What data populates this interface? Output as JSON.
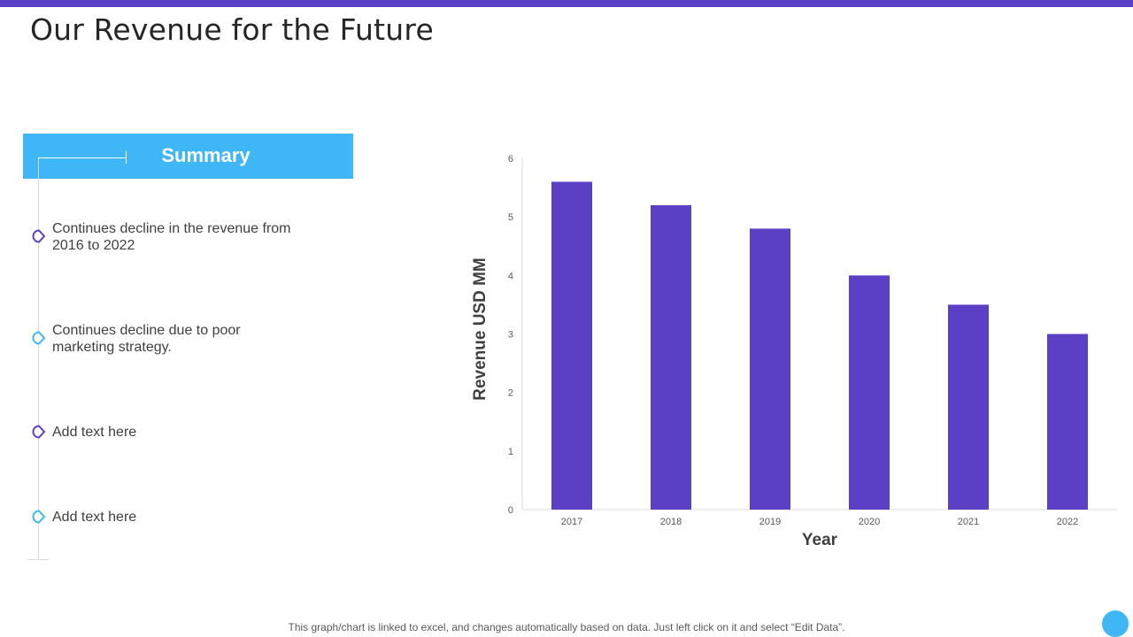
{
  "colors": {
    "accent": "#5b3fc4",
    "light_blue": "#3fb6f5",
    "bar": "#5b3fc4"
  },
  "page": {
    "title": "Our Revenue for the Future",
    "footer_note": "This graph/chart is linked to excel,  and changes automatically based on data. Just left click on it and select “Edit Data”."
  },
  "summary": {
    "title": "Summary",
    "items": [
      {
        "text": "Continues decline in the revenue from 2016 to 2022",
        "marker": "purple"
      },
      {
        "text": "Continues decline due to poor marketing strategy.",
        "marker": "blue"
      },
      {
        "text": "Add text here",
        "marker": "purple"
      },
      {
        "text": "Add text here",
        "marker": "blue"
      }
    ]
  },
  "chart_data": {
    "type": "bar",
    "title": "",
    "categories": [
      "2017",
      "2018",
      "2019",
      "2020",
      "2021",
      "2022"
    ],
    "values": [
      5.6,
      5.2,
      4.8,
      4.0,
      3.5,
      3.0
    ],
    "xlabel": "Year",
    "ylabel": "Revenue USD MM",
    "ylim": [
      0,
      6
    ],
    "yticks": [
      "0",
      "1",
      "2",
      "3",
      "4",
      "5",
      "6"
    ],
    "grid": false,
    "legend": "none"
  }
}
